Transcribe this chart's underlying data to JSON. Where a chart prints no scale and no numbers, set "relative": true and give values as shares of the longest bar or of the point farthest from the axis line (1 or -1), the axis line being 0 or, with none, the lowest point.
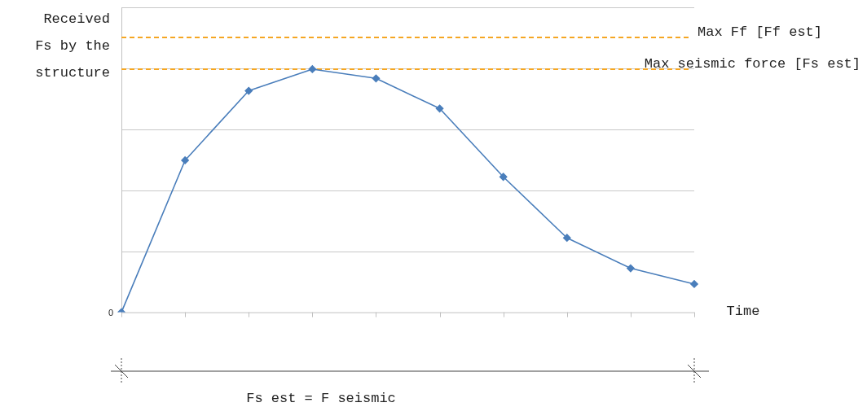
{
  "chart_data": {
    "type": "line",
    "relative": true,
    "ylabel": "Received Fs by the structure",
    "xlabel": "Time",
    "categories": [
      null,
      null,
      null,
      null,
      null,
      null,
      null,
      null,
      null,
      null
    ],
    "series": [
      {
        "color": "#4a7ebb",
        "values": [
          0,
          0.625,
          0.911,
          1,
          0.962,
          0.838,
          0.557,
          0.306,
          0.181,
          0.116
        ]
      }
    ],
    "marker": "diamond",
    "grid": "y",
    "legend": false,
    "ref_lines": [
      {
        "axis": "y",
        "value": 1.13,
        "label": "Max Ff [Ff est]",
        "color": "#f5a623",
        "line_style": "dashed"
      },
      {
        "axis": "y",
        "value": 1.0,
        "label": "Max seismic force [Fs est]",
        "color": "#f5a623",
        "line_style": "dashed"
      }
    ],
    "annotations": [
      "0",
      "Fs est = F seismic"
    ]
  }
}
